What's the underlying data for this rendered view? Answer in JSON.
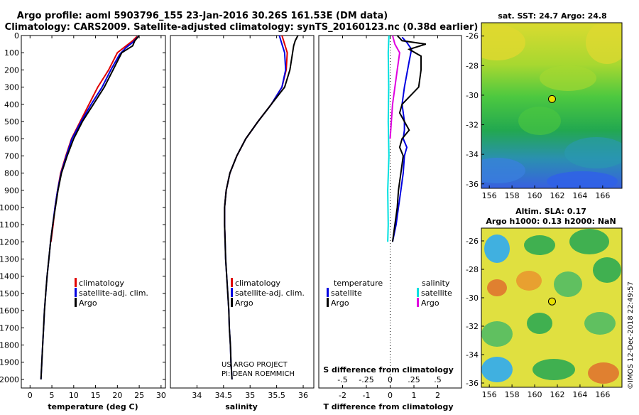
{
  "header": {
    "line1": "Argo profile: aoml 5903796_155 23-Jan-2016 30.26S 161.53E (DM data)",
    "line2": "Climatology: CARS2009. Satellite-adjusted climatology: synTS_20160123.nc (0.38d earlier)"
  },
  "credit": {
    "line1": "US ARGO PROJECT",
    "line2": "PI: DEAN ROEMMICH",
    "imos": "©IMOS 12-Dec-2018 22:49:57"
  },
  "colors": {
    "climatology": "#e00000",
    "satellite": "#0000e0",
    "argo": "#000000",
    "cyan": "#00e0e0",
    "magenta": "#e000e0"
  },
  "chart_data": [
    {
      "id": "temperature",
      "type": "line",
      "xlabel": "temperature (deg C)",
      "ylabel": "",
      "xlim": [
        -2,
        31
      ],
      "ylim": [
        0,
        2050
      ],
      "y_inverted": true,
      "xticks": [
        0,
        5,
        10,
        15,
        20,
        25,
        30
      ],
      "yticks": [
        0,
        100,
        200,
        300,
        400,
        500,
        600,
        700,
        800,
        900,
        1000,
        1100,
        1200,
        1300,
        1400,
        1500,
        1600,
        1700,
        1800,
        1900,
        2000
      ],
      "legend": [
        "climatology",
        "satellite-adj. clim.",
        "Argo"
      ],
      "legend_position": "lower-middle",
      "series": [
        {
          "name": "climatology",
          "color": "#e00000",
          "points": [
            [
              24.5,
              5
            ],
            [
              23.5,
              30
            ],
            [
              22,
              60
            ],
            [
              20,
              100
            ],
            [
              18,
              200
            ],
            [
              15.5,
              300
            ],
            [
              13.5,
              400
            ],
            [
              11.5,
              500
            ],
            [
              9.5,
              600
            ],
            [
              8.2,
              700
            ],
            [
              7,
              800
            ],
            [
              6.3,
              900
            ],
            [
              5.7,
              1000
            ],
            [
              5.3,
              1100
            ],
            [
              4.8,
              1200
            ]
          ]
        },
        {
          "name": "satellite-adj. clim.",
          "color": "#0000e0",
          "points": [
            [
              24.8,
              5
            ],
            [
              23.5,
              40
            ],
            [
              22,
              70
            ],
            [
              20.5,
              110
            ],
            [
              18.5,
              200
            ],
            [
              16.5,
              300
            ],
            [
              14,
              400
            ],
            [
              11.7,
              500
            ],
            [
              9.6,
              600
            ],
            [
              8.3,
              700
            ],
            [
              7.1,
              800
            ],
            [
              6.3,
              900
            ],
            [
              5.7,
              1000
            ],
            [
              5.2,
              1100
            ],
            [
              4.7,
              1200
            ],
            [
              4.3,
              1300
            ],
            [
              3.9,
              1400
            ],
            [
              3.6,
              1500
            ],
            [
              3.3,
              1600
            ],
            [
              3.1,
              1700
            ],
            [
              2.9,
              1800
            ],
            [
              2.7,
              1900
            ],
            [
              2.5,
              2000
            ]
          ]
        },
        {
          "name": "Argo",
          "color": "#000000",
          "points": [
            [
              25,
              0
            ],
            [
              24,
              30
            ],
            [
              23.5,
              60
            ],
            [
              21,
              100
            ],
            [
              19,
              200
            ],
            [
              17,
              300
            ],
            [
              14.5,
              400
            ],
            [
              12,
              500
            ],
            [
              10,
              600
            ],
            [
              8.5,
              700
            ],
            [
              7.2,
              800
            ],
            [
              6.4,
              900
            ],
            [
              5.8,
              1000
            ],
            [
              5.2,
              1100
            ],
            [
              4.7,
              1200
            ],
            [
              4.3,
              1300
            ],
            [
              3.9,
              1400
            ],
            [
              3.6,
              1500
            ],
            [
              3.3,
              1600
            ],
            [
              3.1,
              1700
            ],
            [
              2.9,
              1800
            ],
            [
              2.7,
              1900
            ],
            [
              2.5,
              2000
            ]
          ]
        }
      ]
    },
    {
      "id": "salinity",
      "type": "line",
      "xlabel": "salinity",
      "ylabel": "",
      "xlim": [
        33.5,
        36.2
      ],
      "ylim": [
        0,
        2050
      ],
      "y_inverted": true,
      "xticks": [
        34,
        34.5,
        35,
        35.5,
        36
      ],
      "legend": [
        "climatology",
        "satellite-adj. clim.",
        "Argo"
      ],
      "legend_position": "lower-middle",
      "series": [
        {
          "name": "climatology",
          "color": "#e00000",
          "points": [
            [
              35.6,
              0
            ],
            [
              35.65,
              50
            ],
            [
              35.7,
              100
            ],
            [
              35.68,
              200
            ],
            [
              35.6,
              300
            ],
            [
              35.4,
              400
            ],
            [
              35.15,
              500
            ],
            [
              34.92,
              600
            ],
            [
              34.75,
              700
            ],
            [
              34.62,
              800
            ],
            [
              34.55,
              900
            ],
            [
              34.52,
              1000
            ],
            [
              34.52,
              1100
            ],
            [
              34.53,
              1200
            ]
          ]
        },
        {
          "name": "satellite-adj. clim.",
          "color": "#0000e0",
          "points": [
            [
              35.55,
              0
            ],
            [
              35.6,
              50
            ],
            [
              35.65,
              100
            ],
            [
              35.67,
              200
            ],
            [
              35.6,
              300
            ],
            [
              35.4,
              400
            ],
            [
              35.15,
              500
            ],
            [
              34.92,
              600
            ],
            [
              34.75,
              700
            ],
            [
              34.62,
              800
            ],
            [
              34.55,
              900
            ],
            [
              34.52,
              1000
            ],
            [
              34.52,
              1100
            ],
            [
              34.53,
              1200
            ],
            [
              34.54,
              1300
            ],
            [
              34.56,
              1400
            ],
            [
              34.58,
              1500
            ],
            [
              34.6,
              1600
            ],
            [
              34.61,
              1700
            ],
            [
              34.63,
              1800
            ],
            [
              34.64,
              1900
            ],
            [
              34.66,
              2000
            ]
          ]
        },
        {
          "name": "Argo",
          "color": "#000000",
          "points": [
            [
              35.9,
              0
            ],
            [
              35.85,
              30
            ],
            [
              35.82,
              60
            ],
            [
              35.8,
              100
            ],
            [
              35.75,
              200
            ],
            [
              35.65,
              300
            ],
            [
              35.4,
              400
            ],
            [
              35.15,
              500
            ],
            [
              34.92,
              600
            ],
            [
              34.75,
              700
            ],
            [
              34.62,
              800
            ],
            [
              34.55,
              900
            ],
            [
              34.52,
              1000
            ],
            [
              34.52,
              1100
            ],
            [
              34.53,
              1200
            ],
            [
              34.54,
              1300
            ],
            [
              34.56,
              1400
            ],
            [
              34.58,
              1500
            ],
            [
              34.6,
              1600
            ],
            [
              34.61,
              1700
            ],
            [
              34.63,
              1800
            ],
            [
              34.64,
              1900
            ],
            [
              34.66,
              2000
            ]
          ]
        }
      ]
    },
    {
      "id": "difference",
      "type": "line",
      "xlabel": "T difference from climatology",
      "xlabel_top": "S difference from climatology",
      "xlim": [
        -3,
        3
      ],
      "ylim": [
        0,
        2050
      ],
      "y_inverted": true,
      "xticks": [
        -2,
        -1,
        0,
        1,
        2
      ],
      "xticks_top": [
        -0.5,
        -0.25,
        0,
        0.25,
        0.5
      ],
      "legend_left_title": "temperature",
      "legend_right_title": "salinity",
      "legend_left": [
        "satellite",
        "Argo"
      ],
      "legend_right": [
        "satellite",
        "Argo"
      ],
      "legend_position": "lower-middle",
      "series": [
        {
          "name": "T satellite",
          "color": "#0000e0",
          "points": [
            [
              0.5,
              10
            ],
            [
              0.7,
              40
            ],
            [
              0.9,
              80
            ],
            [
              0.8,
              150
            ],
            [
              0.6,
              300
            ],
            [
              0.5,
              400
            ],
            [
              0.6,
              500
            ],
            [
              0.6,
              550
            ],
            [
              0.55,
              600
            ],
            [
              0.7,
              650
            ],
            [
              0.6,
              700
            ],
            [
              0.55,
              800
            ],
            [
              0.45,
              900
            ],
            [
              0.35,
              1000
            ],
            [
              0.25,
              1100
            ],
            [
              0.1,
              1200
            ]
          ]
        },
        {
          "name": "T Argo",
          "color": "#000000",
          "points": [
            [
              0.3,
              0
            ],
            [
              0.5,
              30
            ],
            [
              1.5,
              50
            ],
            [
              0.8,
              80
            ],
            [
              1.3,
              120
            ],
            [
              1.3,
              200
            ],
            [
              1.2,
              300
            ],
            [
              0.5,
              400
            ],
            [
              0.4,
              450
            ],
            [
              0.6,
              500
            ],
            [
              0.8,
              550
            ],
            [
              0.5,
              600
            ],
            [
              0.4,
              650
            ],
            [
              0.55,
              700
            ],
            [
              0.45,
              800
            ],
            [
              0.35,
              900
            ],
            [
              0.3,
              1000
            ],
            [
              0.2,
              1100
            ],
            [
              0.1,
              1200
            ]
          ]
        },
        {
          "name": "S satellite",
          "color": "#00e0e0",
          "points": [
            [
              -0.05,
              0
            ],
            [
              -0.08,
              100
            ],
            [
              -0.06,
              300
            ],
            [
              -0.08,
              500
            ],
            [
              -0.05,
              700
            ],
            [
              -0.1,
              900
            ],
            [
              -0.08,
              1100
            ],
            [
              -0.1,
              1200
            ]
          ]
        },
        {
          "name": "S Argo",
          "color": "#e000e0",
          "points": [
            [
              0.1,
              0
            ],
            [
              0.2,
              50
            ],
            [
              0.4,
              100
            ],
            [
              0.3,
              200
            ],
            [
              0.2,
              300
            ],
            [
              0.1,
              400
            ],
            [
              0.05,
              500
            ],
            [
              0,
              600
            ]
          ]
        }
      ]
    },
    {
      "id": "sst_map",
      "type": "heatmap",
      "title": "sat. SST: 24.7 Argo: 24.8",
      "xticks": [
        156,
        158,
        160,
        162,
        164,
        166
      ],
      "yticks": [
        -26,
        -28,
        -30,
        -32,
        -34,
        -36
      ],
      "xlim": [
        155.3,
        167.7
      ],
      "ylim": [
        -36.3,
        -25.1
      ],
      "marker": {
        "lon": 161.53,
        "lat": -30.26
      }
    },
    {
      "id": "sla_map",
      "type": "heatmap",
      "title": "Altim. SLA: 0.17",
      "subtitle": "Argo h1000: 0.13 h2000: NaN",
      "xticks": [
        156,
        158,
        160,
        162,
        164,
        166
      ],
      "yticks": [
        -26,
        -28,
        -30,
        -32,
        -34,
        -36
      ],
      "xlim": [
        155.3,
        167.7
      ],
      "ylim": [
        -36.3,
        -25.1
      ],
      "marker": {
        "lon": 161.53,
        "lat": -30.26
      }
    }
  ]
}
